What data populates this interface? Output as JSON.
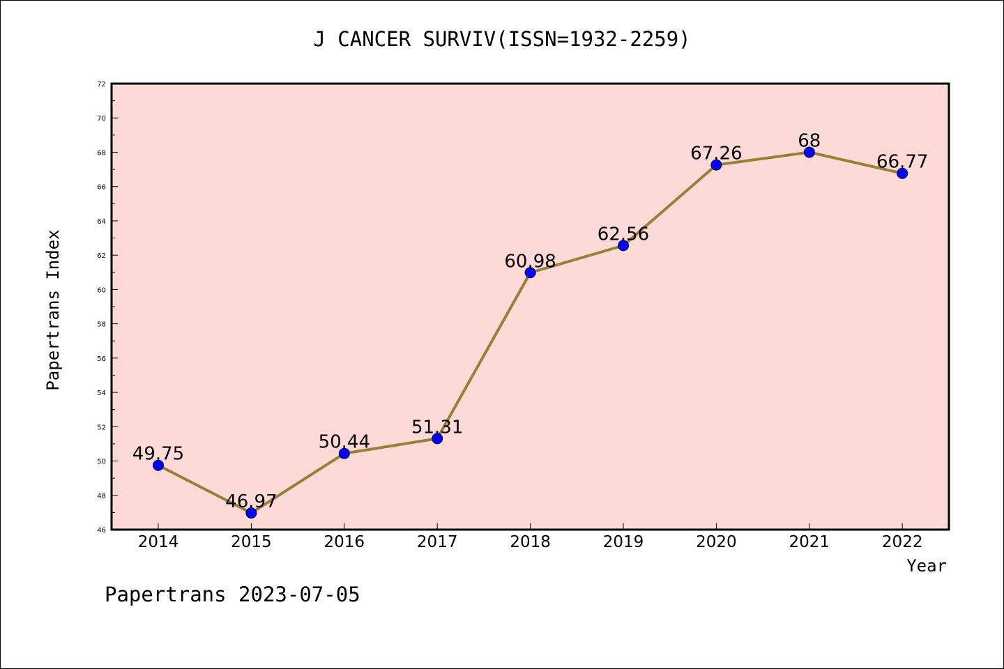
{
  "chart_data": {
    "type": "line",
    "title": "J CANCER SURVIV(ISSN=1932-2259)",
    "xlabel": "Year",
    "ylabel": "Papertrans Index",
    "footer": "Papertrans 2023-07-05",
    "categories": [
      "2014",
      "2015",
      "2016",
      "2017",
      "2018",
      "2019",
      "2020",
      "2021",
      "2022"
    ],
    "values": [
      49.75,
      46.97,
      50.44,
      51.31,
      60.98,
      62.56,
      67.26,
      68,
      66.77
    ],
    "data_labels": [
      "49.75",
      "46.97",
      "50.44",
      "51.31",
      "60.98",
      "62.56",
      "67.26",
      "68",
      "66.77"
    ],
    "ylim": [
      46,
      72
    ],
    "yticks": [
      "46",
      "48",
      "50",
      "52",
      "54",
      "56",
      "58",
      "60",
      "62",
      "64",
      "66",
      "68",
      "70",
      "72"
    ],
    "grid": false,
    "colors": {
      "plot_background": "#fddad7",
      "line": "#9a8036",
      "marker": "#0000ff",
      "axis": "#000000"
    }
  }
}
